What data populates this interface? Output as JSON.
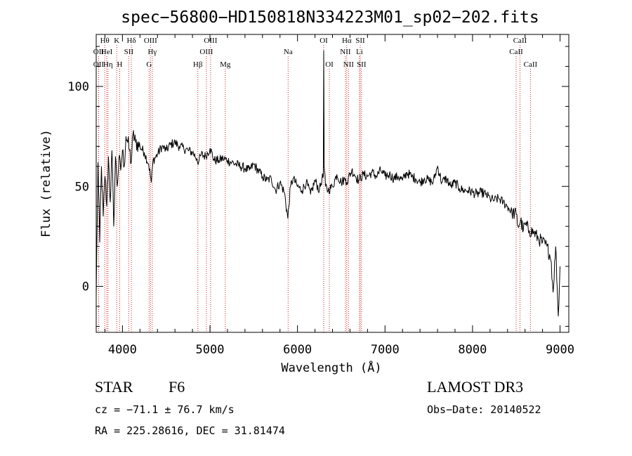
{
  "chart_data": {
    "type": "line",
    "title": "spec−56800−HD150818N334223M01_sp02−202.fits",
    "xlabel": "Wavelength (Å)",
    "ylabel": "Flux (relative)",
    "xlim": [
      3700,
      9100
    ],
    "ylim": [
      -23,
      126
    ],
    "x_ticks": [
      4000,
      5000,
      6000,
      7000,
      8000,
      9000
    ],
    "y_ticks": [
      0,
      50,
      100
    ],
    "grid": false,
    "series": [
      {
        "name": "spectrum",
        "x": [
          3700,
          3720,
          3740,
          3760,
          3780,
          3800,
          3820,
          3840,
          3860,
          3880,
          3900,
          3920,
          3940,
          3960,
          3980,
          4000,
          4020,
          4040,
          4060,
          4080,
          4100,
          4120,
          4150,
          4200,
          4250,
          4300,
          4330,
          4350,
          4400,
          4450,
          4500,
          4550,
          4600,
          4650,
          4700,
          4750,
          4800,
          4850,
          4870,
          4900,
          4950,
          5000,
          5050,
          5100,
          5150,
          5200,
          5250,
          5300,
          5350,
          5400,
          5450,
          5500,
          5550,
          5600,
          5650,
          5700,
          5750,
          5800,
          5850,
          5890,
          5920,
          5950,
          6000,
          6050,
          6100,
          6150,
          6200,
          6250,
          6280,
          6295,
          6300,
          6305,
          6320,
          6350,
          6400,
          6450,
          6500,
          6550,
          6563,
          6580,
          6620,
          6650,
          6700,
          6750,
          6800,
          6850,
          6900,
          6950,
          7000,
          7050,
          7100,
          7150,
          7200,
          7250,
          7300,
          7350,
          7400,
          7450,
          7500,
          7550,
          7600,
          7650,
          7700,
          7750,
          7800,
          7850,
          7900,
          7950,
          8000,
          8050,
          8100,
          8150,
          8200,
          8250,
          8300,
          8350,
          8400,
          8450,
          8500,
          8520,
          8550,
          8580,
          8600,
          8650,
          8700,
          8750,
          8800,
          8850,
          8880,
          8900,
          8920,
          8950,
          8980,
          9000
        ],
        "y": [
          -5,
          62,
          22,
          60,
          35,
          55,
          40,
          65,
          42,
          68,
          30,
          65,
          50,
          64,
          58,
          68,
          60,
          75,
          72,
          68,
          62,
          76,
          72,
          70,
          67,
          61,
          52,
          63,
          66,
          70,
          68,
          71,
          72,
          70,
          69,
          68,
          67,
          64,
          62,
          66,
          65,
          69,
          63,
          63,
          64,
          63,
          62,
          61,
          60,
          59,
          58,
          61,
          58,
          55,
          53,
          54,
          48,
          52,
          47,
          34,
          50,
          54,
          50,
          48,
          52,
          46,
          53,
          48,
          54,
          55,
          118,
          60,
          50,
          48,
          50,
          56,
          52,
          54,
          52,
          54,
          58,
          56,
          53,
          56,
          55,
          57,
          55,
          58,
          55,
          56,
          54,
          55,
          53,
          57,
          55,
          54,
          52,
          54,
          53,
          52,
          60,
          52,
          54,
          50,
          52,
          49,
          48,
          48,
          47,
          46,
          47,
          46,
          44,
          43,
          44,
          42,
          40,
          37,
          36,
          30,
          33,
          28,
          31,
          28,
          27,
          24,
          22,
          20,
          16,
          12,
          -3,
          20,
          -15,
          10
        ]
      }
    ],
    "lines": [
      {
        "label": "OII",
        "w": 3727,
        "tier": 2
      },
      {
        "label": "OII",
        "w": 3727,
        "tier": 3
      },
      {
        "label": "Hθ",
        "w": 3798,
        "tier": 1
      },
      {
        "label": "HeI",
        "w": 3820,
        "tier": 2
      },
      {
        "label": "Hη",
        "w": 3835,
        "tier": 3
      },
      {
        "label": "K",
        "w": 3934,
        "tier": 1
      },
      {
        "label": "H",
        "w": 3969,
        "tier": 3
      },
      {
        "label": "SII",
        "w": 4072,
        "tier": 2
      },
      {
        "label": "Hδ",
        "w": 4102,
        "tier": 1
      },
      {
        "label": "OIII",
        "w": 4320,
        "tier": 1
      },
      {
        "label": "G",
        "w": 4304,
        "tier": 3
      },
      {
        "label": "Hγ",
        "w": 4341,
        "tier": 2
      },
      {
        "label": "Hβ",
        "w": 4861,
        "tier": 3
      },
      {
        "label": "OIII",
        "w": 4959,
        "tier": 2
      },
      {
        "label": "OIII",
        "w": 5007,
        "tier": 1
      },
      {
        "label": "Mg",
        "w": 5175,
        "tier": 3
      },
      {
        "label": "Na",
        "w": 5893,
        "tier": 2
      },
      {
        "label": "OI",
        "w": 6300,
        "tier": 1
      },
      {
        "label": "OI",
        "w": 6364,
        "tier": 3
      },
      {
        "label": "NII",
        "w": 6548,
        "tier": 2
      },
      {
        "label": "Hα",
        "w": 6563,
        "tier": 1
      },
      {
        "label": "NII",
        "w": 6583,
        "tier": 3
      },
      {
        "label": "Li",
        "w": 6708,
        "tier": 2
      },
      {
        "label": "SII",
        "w": 6717,
        "tier": 1
      },
      {
        "label": "SII",
        "w": 6731,
        "tier": 3
      },
      {
        "label": "CaII",
        "w": 8498,
        "tier": 2
      },
      {
        "label": "CaII",
        "w": 8542,
        "tier": 1
      },
      {
        "label": "CaII",
        "w": 8662,
        "tier": 3
      }
    ]
  },
  "info": {
    "obj_class": "STAR",
    "subclass": "F6",
    "survey": "LAMOST DR3",
    "cz": "cz = −71.1 ± 76.7 km/s",
    "obs_date": "Obs−Date: 20140522",
    "radec": "RA = 225.28616, DEC =  31.81474"
  }
}
